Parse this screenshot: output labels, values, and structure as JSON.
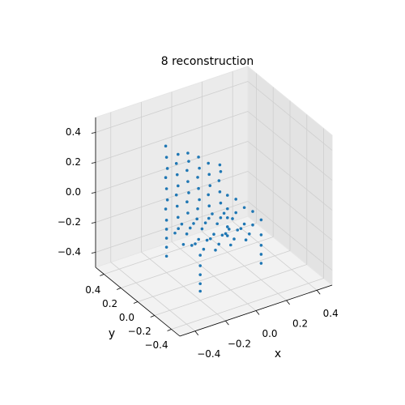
{
  "chart_data": {
    "type": "scatter3d",
    "title": "8 reconstruction",
    "xlabel": "x",
    "ylabel": "y",
    "xlim": [
      -0.5,
      0.5
    ],
    "ylim": [
      -0.5,
      0.5
    ],
    "zlim": [
      -0.5,
      0.5
    ],
    "xticks": [
      {
        "value": -0.4,
        "label": "−0.4"
      },
      {
        "value": -0.2,
        "label": "−0.2"
      },
      {
        "value": 0,
        "label": "0.0"
      },
      {
        "value": 0.2,
        "label": "0.2"
      },
      {
        "value": 0.4,
        "label": "0.4"
      }
    ],
    "yticks": [
      {
        "value": -0.4,
        "label": "−0.4"
      },
      {
        "value": -0.2,
        "label": "−0.2"
      },
      {
        "value": 0,
        "label": "0.0"
      },
      {
        "value": 0.2,
        "label": "0.2"
      },
      {
        "value": 0.4,
        "label": "0.4"
      }
    ],
    "zticks": [
      {
        "value": -0.4,
        "label": "−0.4"
      },
      {
        "value": -0.2,
        "label": "−0.2"
      },
      {
        "value": 0,
        "label": "0.0"
      },
      {
        "value": 0.2,
        "label": "0.2"
      },
      {
        "value": 0.4,
        "label": "0.4"
      }
    ],
    "grid": true,
    "series": [
      {
        "color": "#1f77b4",
        "x": [
          -0.2,
          -0.2,
          -0.2,
          -0.2,
          -0.2,
          -0.2,
          -0.2,
          -0.2,
          -0.13,
          -0.13,
          -0.13,
          -0.13,
          -0.13,
          -0.13,
          -0.13,
          -0.06,
          -0.06,
          -0.06,
          -0.06,
          -0.06,
          -0.06,
          -0.06,
          0.01,
          0.01,
          0.01,
          0.01,
          0.01,
          0.01,
          0.08,
          0.08,
          0.08,
          0.08,
          0.08,
          0.15,
          0.15,
          0.15,
          0.15,
          0.15,
          -0.2,
          -0.2,
          -0.2,
          -0.2,
          -0.2,
          -0.1,
          -0.1,
          -0.1,
          -0.1,
          -0.1,
          0,
          0,
          0,
          0,
          0,
          0.1,
          0.1,
          0.1,
          0.1,
          0.1,
          0.2,
          0.2,
          0.2,
          0.2,
          0.2,
          -0.15,
          -0.15,
          -0.15,
          -0.15,
          -0.05,
          -0.05,
          -0.05,
          -0.05,
          0.05,
          0.05,
          0.05,
          0.05,
          0.15,
          0.15,
          0.15,
          0.15,
          0.2,
          0.2,
          0.2,
          0.2,
          0.2,
          -0.2,
          -0.2,
          -0.2,
          -0.2,
          0.2,
          0.2,
          0.2,
          -0.2,
          -0.2,
          -0.2,
          0.2,
          0.2,
          0.2
        ],
        "y": [
          0.2,
          0.21,
          0.19,
          0.2,
          0.21,
          0.19,
          0.2,
          0.21,
          0.19,
          0.2,
          0.21,
          0.19,
          0.2,
          0.21,
          0.19,
          0.2,
          0.21,
          0.19,
          0.2,
          0.21,
          0.19,
          0.2,
          0.21,
          0.19,
          0.2,
          0.21,
          0.19,
          0.2,
          0.2,
          0.21,
          0.19,
          0.2,
          0.21,
          0.19,
          0.2,
          0.21,
          0.19,
          0.2,
          -0.2,
          -0.1,
          0,
          0.1,
          0.2,
          -0.2,
          -0.1,
          0,
          0.1,
          0.2,
          -0.2,
          -0.1,
          0,
          0.1,
          0.2,
          -0.2,
          -0.1,
          0,
          0.1,
          0.2,
          -0.2,
          -0.1,
          0,
          0.1,
          0.2,
          -0.15,
          -0.05,
          0.05,
          0.15,
          -0.15,
          -0.05,
          0.05,
          0.15,
          -0.15,
          -0.05,
          0.05,
          0.15,
          -0.15,
          -0.05,
          0.05,
          0.15,
          -0.2,
          -0.1,
          0,
          0.1,
          0.2,
          -0.2,
          -0.2,
          -0.2,
          -0.2,
          -0.2,
          -0.2,
          -0.2,
          0.2,
          0.2,
          0.2,
          0.2,
          0.2,
          0.2
        ],
        "z": [
          -0.15,
          -0.08,
          -0.01,
          0.06,
          0.13,
          0.2,
          0.27,
          0.34,
          -0.15,
          -0.08,
          -0.01,
          0.06,
          0.13,
          0.2,
          0.27,
          -0.15,
          -0.08,
          -0.01,
          0.06,
          0.13,
          0.2,
          0.25,
          -0.15,
          -0.08,
          -0.01,
          0.06,
          0.13,
          0.2,
          -0.15,
          -0.08,
          -0.01,
          0.06,
          0.13,
          -0.15,
          -0.08,
          -0.01,
          0.06,
          0.1,
          -0.2,
          -0.18,
          -0.22,
          -0.19,
          -0.21,
          -0.2,
          -0.18,
          -0.22,
          -0.19,
          -0.21,
          -0.2,
          -0.18,
          -0.22,
          -0.19,
          -0.21,
          -0.2,
          -0.18,
          -0.22,
          -0.19,
          -0.21,
          -0.2,
          -0.18,
          -0.22,
          -0.19,
          -0.21,
          -0.2,
          -0.21,
          -0.19,
          -0.2,
          -0.2,
          -0.21,
          -0.19,
          -0.2,
          -0.2,
          -0.21,
          -0.19,
          -0.2,
          -0.2,
          -0.21,
          -0.19,
          -0.2,
          -0.1,
          -0.09,
          -0.11,
          -0.1,
          -0.12,
          -0.27,
          -0.33,
          -0.39,
          -0.44,
          -0.27,
          -0.33,
          -0.39,
          -0.27,
          -0.33,
          -0.39,
          -0.27,
          -0.33,
          -0.39
        ]
      }
    ]
  }
}
